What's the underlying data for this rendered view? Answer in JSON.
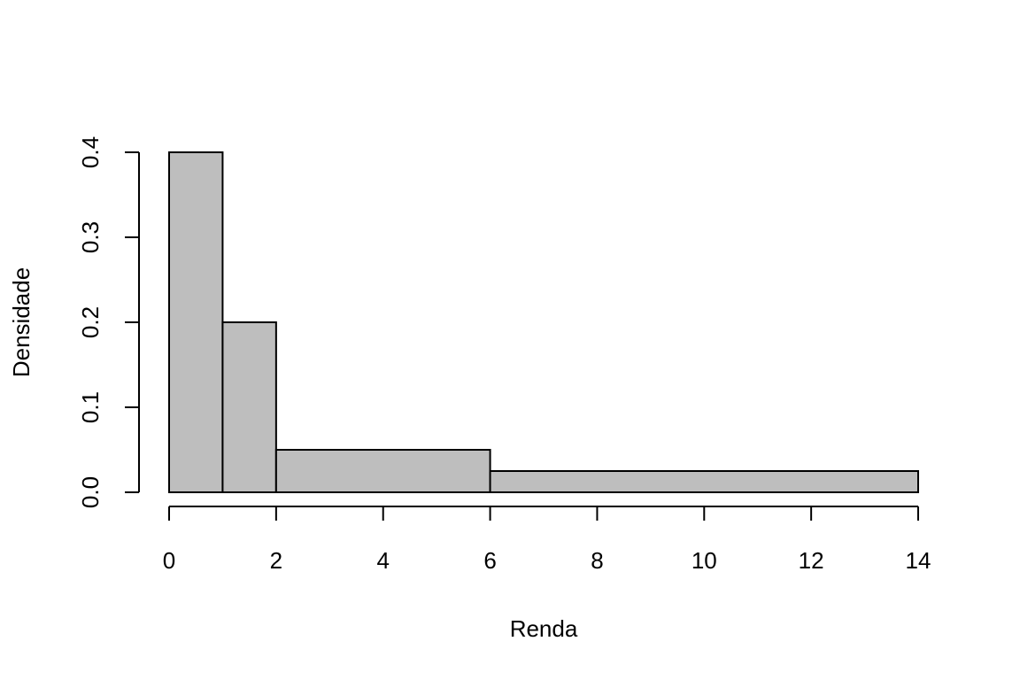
{
  "chart_data": {
    "type": "bar",
    "title": "",
    "xlabel": "Renda",
    "ylabel": "Densidade",
    "bins": [
      {
        "x0": 0,
        "x1": 1,
        "density": 0.4
      },
      {
        "x0": 1,
        "x1": 2,
        "density": 0.2
      },
      {
        "x0": 2,
        "x1": 6,
        "density": 0.05
      },
      {
        "x0": 6,
        "x1": 14,
        "density": 0.025
      }
    ],
    "xticks": [
      0,
      2,
      4,
      6,
      8,
      10,
      12,
      14
    ],
    "xtick_labels": [
      "0",
      "2",
      "4",
      "6",
      "8",
      "10",
      "12",
      "14"
    ],
    "yticks": [
      0,
      0.1,
      0.2,
      0.3,
      0.4
    ],
    "ytick_labels": [
      "0.0",
      "0.1",
      "0.2",
      "0.3",
      "0.4"
    ],
    "xlim": [
      0,
      14
    ],
    "ylim": [
      0,
      0.4
    ],
    "grid": false,
    "legend": "none",
    "bar_fill": "#bebebe",
    "bar_stroke": "#000000"
  }
}
